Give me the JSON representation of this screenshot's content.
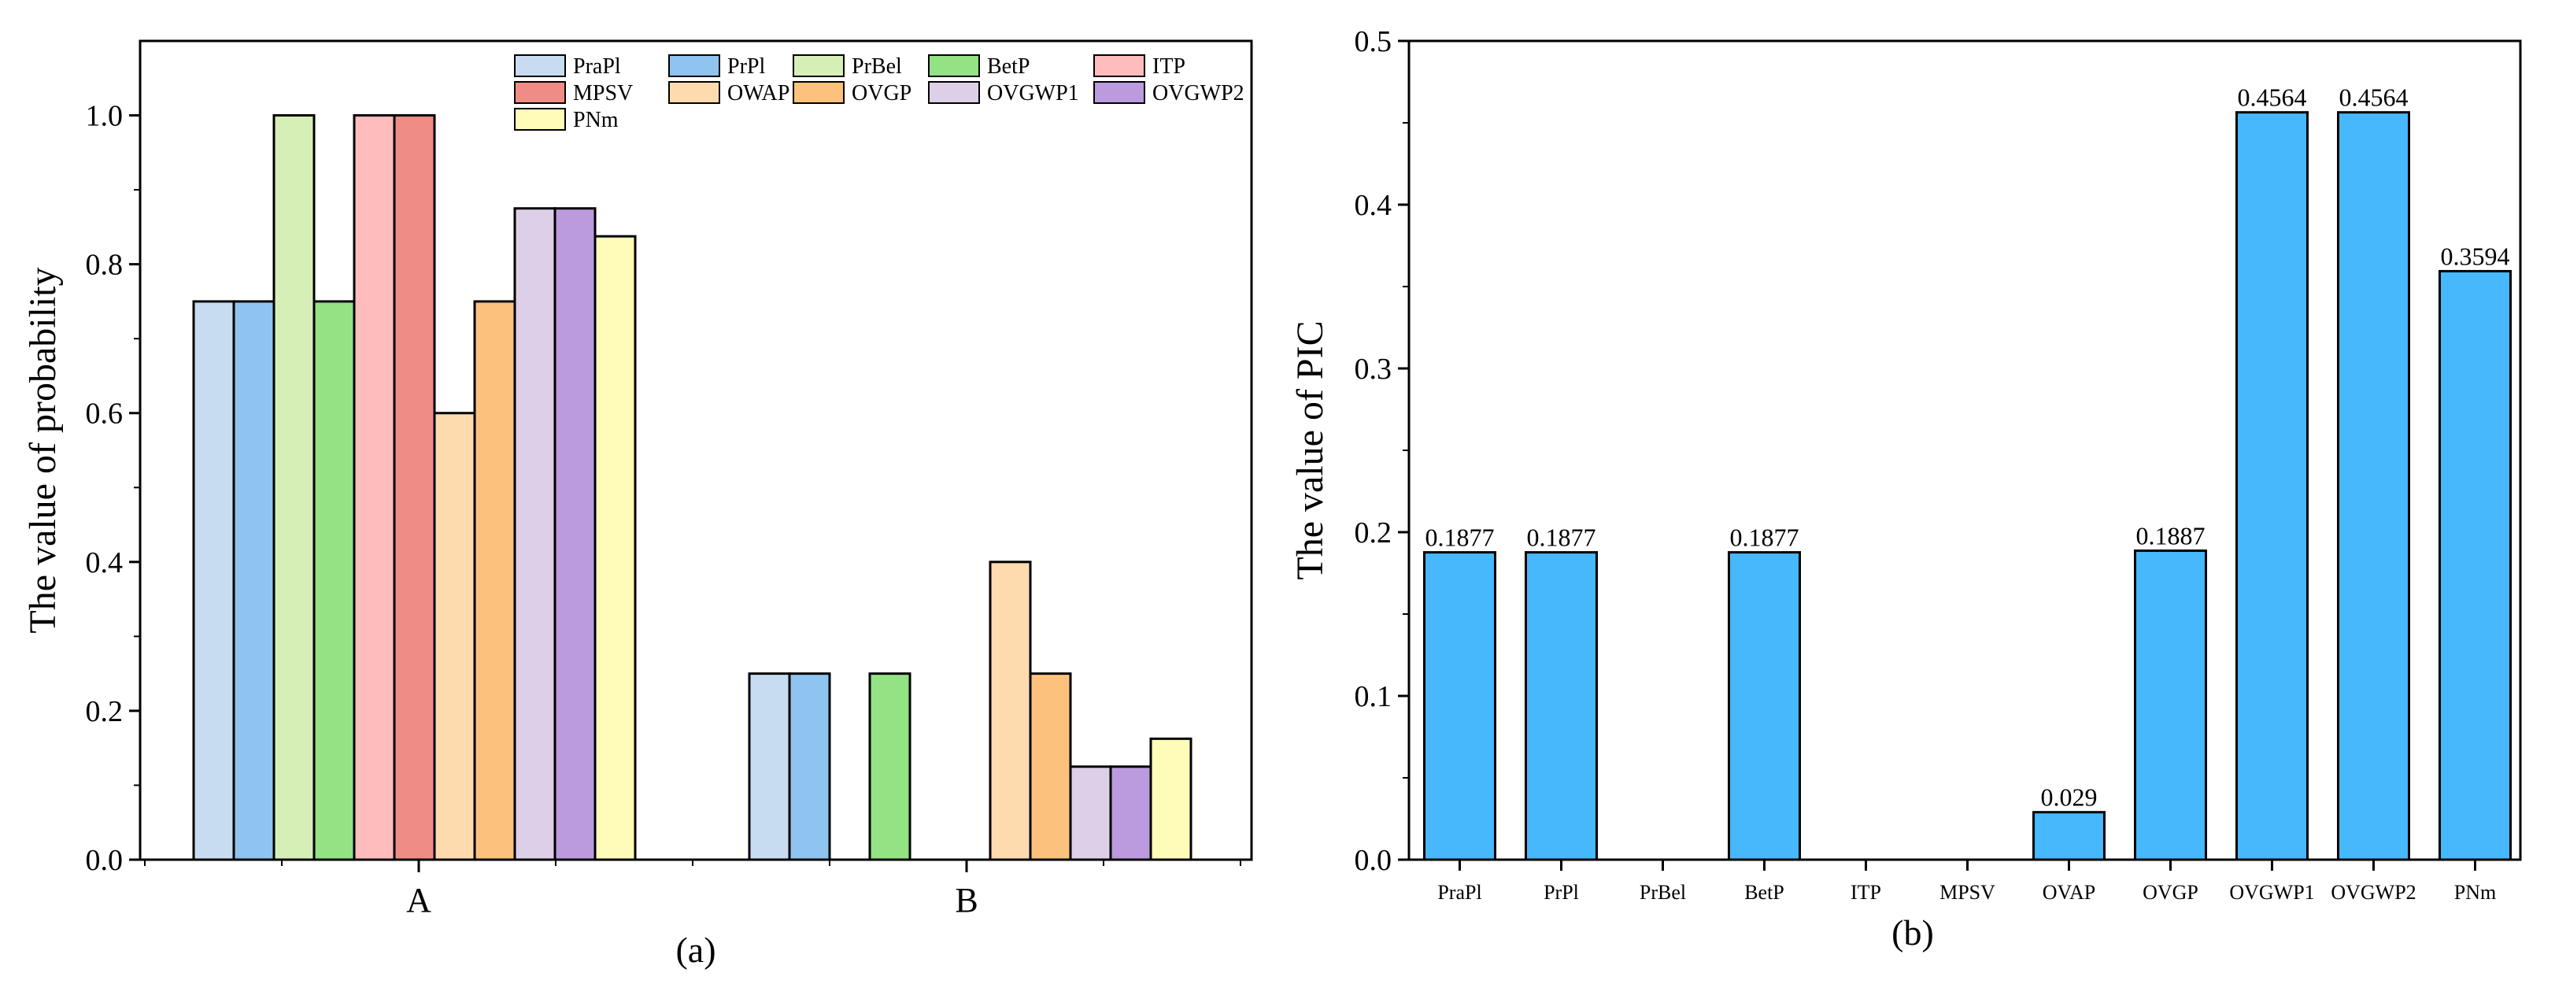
{
  "chart_data": [
    {
      "id": "a",
      "type": "bar",
      "caption": "(a)",
      "ylabel": "The value of probability",
      "xlabel": "",
      "ylim": [
        0,
        1.1
      ],
      "yticks": [
        0.0,
        0.2,
        0.4,
        0.6,
        0.8,
        1.0
      ],
      "ytick_labels": [
        "0.0",
        "0.2",
        "0.4",
        "0.6",
        "0.8",
        "1.0"
      ],
      "categories": [
        "A",
        "B"
      ],
      "legend_position": "top-right",
      "series": [
        {
          "name": "PraPl",
          "color": "#c7dcf0",
          "values": [
            0.75,
            0.25
          ]
        },
        {
          "name": "PrPl",
          "color": "#8ec4ef",
          "values": [
            0.75,
            0.25
          ]
        },
        {
          "name": "PrBel",
          "color": "#d6efb6",
          "values": [
            1.0,
            0.0
          ]
        },
        {
          "name": "BetP",
          "color": "#93e283",
          "values": [
            0.75,
            0.25
          ]
        },
        {
          "name": "ITP",
          "color": "#ffbcbc",
          "values": [
            1.0,
            0.0
          ]
        },
        {
          "name": "MPSV",
          "color": "#f08c86",
          "values": [
            1.0,
            0.0
          ]
        },
        {
          "name": "OWAP",
          "color": "#fedbae",
          "values": [
            0.6,
            0.4
          ]
        },
        {
          "name": "OVGP",
          "color": "#fcc27d",
          "values": [
            0.75,
            0.25
          ]
        },
        {
          "name": "OVGWP1",
          "color": "#ddcfe8",
          "values": [
            0.875,
            0.125
          ]
        },
        {
          "name": "OVGWP2",
          "color": "#bb9bde",
          "values": [
            0.875,
            0.125
          ]
        },
        {
          "name": "PNm",
          "color": "#fefcb8",
          "values": [
            0.8375,
            0.1625
          ]
        }
      ]
    },
    {
      "id": "b",
      "type": "bar",
      "caption": "(b)",
      "ylabel": "The value of PIC",
      "xlabel": "",
      "ylim": [
        0,
        0.5
      ],
      "yticks": [
        0.0,
        0.1,
        0.2,
        0.3,
        0.4,
        0.5
      ],
      "ytick_labels": [
        "0.0",
        "0.1",
        "0.2",
        "0.3",
        "0.4",
        "0.5"
      ],
      "color": "#47b8fb",
      "categories": [
        "PraPl",
        "PrPl",
        "PrBel",
        "BetP",
        "ITP",
        "MPSV",
        "OVAP",
        "OVGP",
        "OVGWP1",
        "OVGWP2",
        "PNm"
      ],
      "values": [
        0.1877,
        0.1877,
        0,
        0.1877,
        0,
        0,
        0.029,
        0.1887,
        0.4564,
        0.4564,
        0.3594
      ],
      "data_labels": [
        "0.1877",
        "0.1877",
        "",
        "0.1877",
        "",
        "",
        "0.029",
        "0.1887",
        "0.4564",
        "0.4564",
        "0.3594"
      ]
    }
  ]
}
